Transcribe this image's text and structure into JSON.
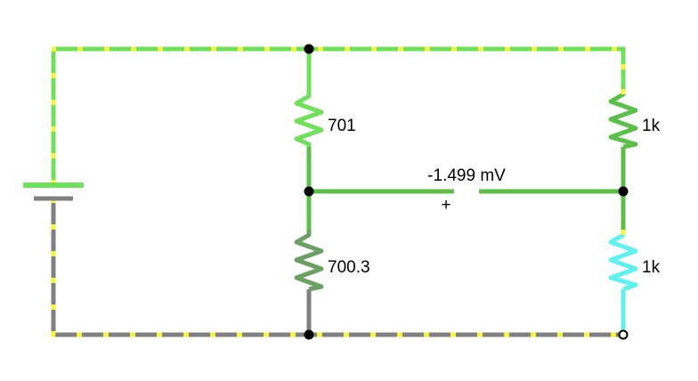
{
  "colors": {
    "wire_top": "#6ee05a",
    "wire_green": "#5cbf4a",
    "wire_gray": "#808080",
    "wire_cyan": "#5ff0f0",
    "current_dot": "#f4f43a",
    "node": "#000000",
    "battery_pos": "#6ee05a",
    "battery_neg": "#808080"
  },
  "components": {
    "r_top_left": {
      "label": "701"
    },
    "r_bottom_left": {
      "label": "700.3"
    },
    "r_top_right": {
      "label": "1k"
    },
    "r_bottom_right": {
      "label": "1k"
    }
  },
  "voltmeter": {
    "reading": "-1.499 mV",
    "polarity": "+"
  }
}
